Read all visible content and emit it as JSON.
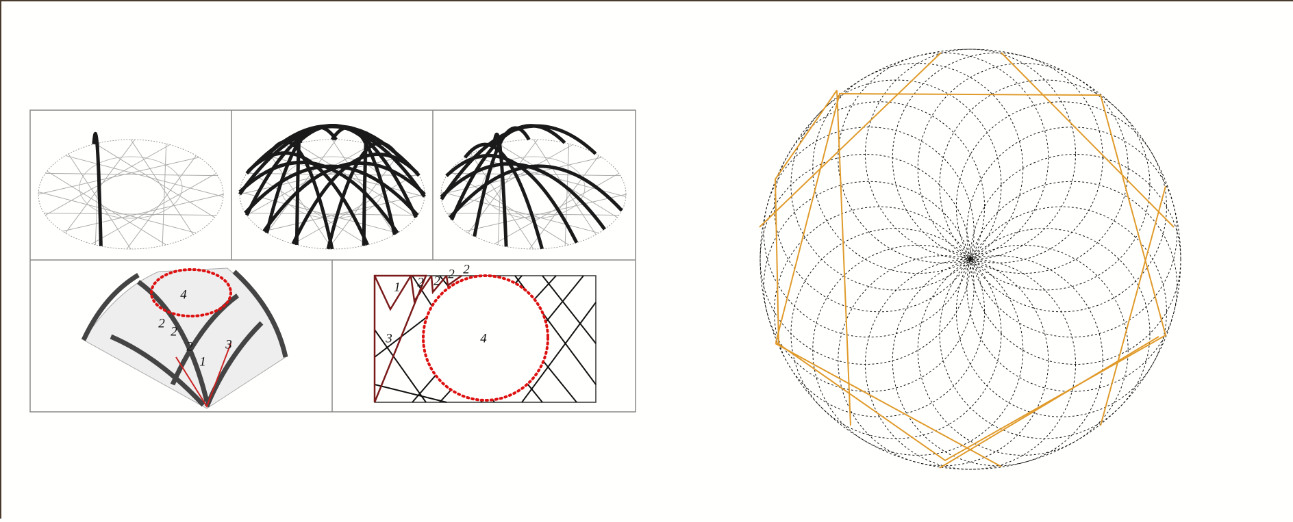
{
  "vault_figure": {
    "perspective_labels": [
      "4",
      "2",
      "2",
      "2",
      "1",
      "3"
    ],
    "plan_labels": [
      "1",
      "2",
      "2",
      "2",
      "2",
      "3",
      "4"
    ]
  }
}
